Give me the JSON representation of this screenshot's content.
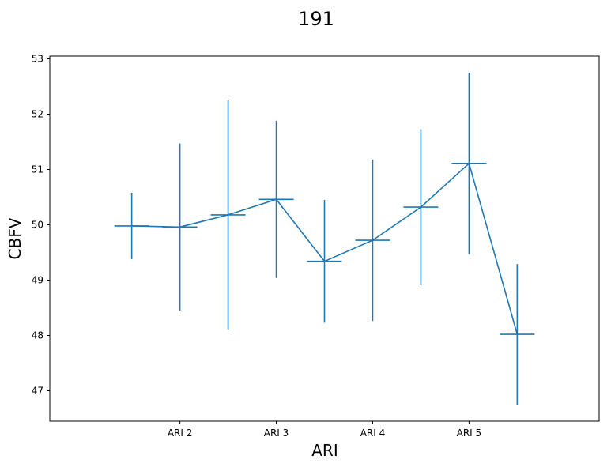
{
  "chart_data": {
    "type": "line",
    "title": "191",
    "xlabel": "ARI",
    "ylabel": "CBFV",
    "x_tick_labels": [
      "ARI 2",
      "ARI 3",
      "ARI 4",
      "ARI 5"
    ],
    "x_tick_positions": [
      2,
      3,
      4,
      5
    ],
    "y_ticks": [
      47,
      48,
      49,
      50,
      51,
      52,
      53
    ],
    "xlim": [
      0.65,
      6.35
    ],
    "ylim": [
      46.45,
      53.05
    ],
    "grid": false,
    "legend": "none",
    "series": [
      {
        "x": [
          1.5,
          2,
          2.5,
          3,
          3.5,
          4,
          4.5,
          5,
          5.5
        ],
        "y": [
          49.98,
          49.96,
          50.18,
          50.46,
          49.34,
          49.72,
          50.32,
          51.11,
          48.02
        ],
        "yerr": [
          0.6,
          1.51,
          2.07,
          1.42,
          1.11,
          1.46,
          1.41,
          1.64,
          1.27
        ],
        "color": "#1f77b4"
      }
    ]
  }
}
